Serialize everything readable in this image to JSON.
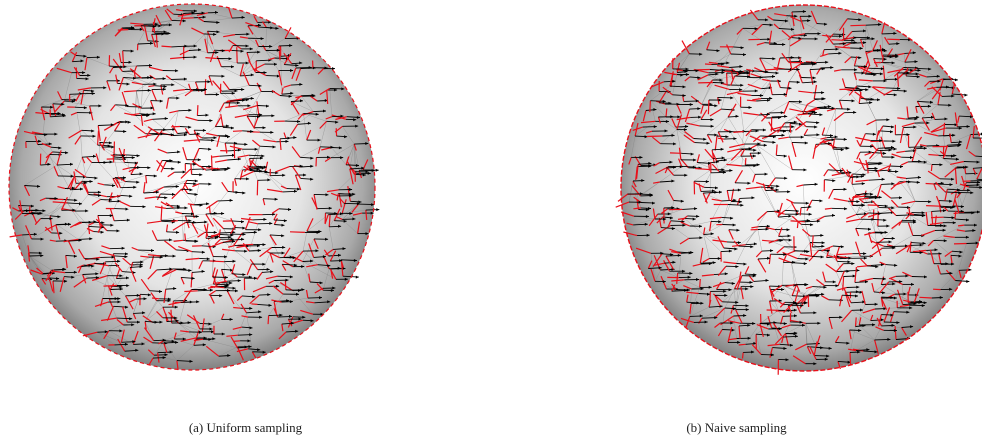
{
  "figure": {
    "panels": [
      {
        "id": "a",
        "caption": "(a) Uniform sampling",
        "sampling": "uniform",
        "colors": {
          "edge": "#e8101a",
          "arrow": "#000000",
          "mesh": "#808080"
        }
      },
      {
        "id": "b",
        "caption": "(b) Naive sampling",
        "sampling": "naive",
        "colors": {
          "edge": "#e8101a",
          "arrow": "#000000",
          "mesh": "#808080"
        }
      }
    ]
  }
}
